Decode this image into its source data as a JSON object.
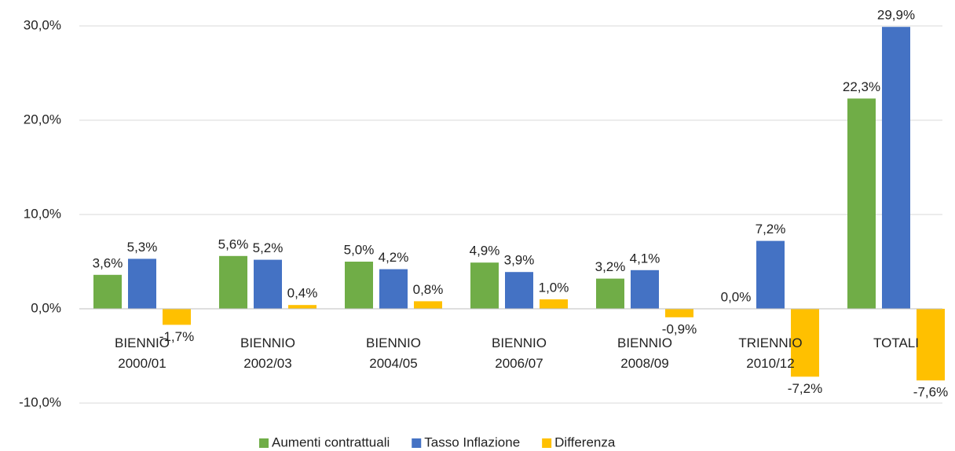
{
  "chart_data": {
    "type": "bar",
    "categories": [
      "BIENNIO 2000/01",
      "BIENNIO 2002/03",
      "BIENNIO 2004/05",
      "BIENNIO 2006/07",
      "BIENNIO 2008/09",
      "TRIENNIO 2010/12",
      "TOTALI"
    ],
    "series": [
      {
        "name": "Aumenti contrattuali",
        "color": "#70ad47",
        "values": [
          3.6,
          5.6,
          5.0,
          4.9,
          3.2,
          0.0,
          22.3
        ],
        "value_labels": [
          "3,6%",
          "5,6%",
          "5,0%",
          "4,9%",
          "3,2%",
          "0,0%",
          "22,3%"
        ]
      },
      {
        "name": "Tasso Inflazione",
        "color": "#4472c4",
        "values": [
          5.3,
          5.2,
          4.2,
          3.9,
          4.1,
          7.2,
          29.9
        ],
        "value_labels": [
          "5,3%",
          "5,2%",
          "4,2%",
          "3,9%",
          "4,1%",
          "7,2%",
          "29,9%"
        ]
      },
      {
        "name": "Differenza",
        "color": "#ffc000",
        "values": [
          -1.7,
          0.4,
          0.8,
          1.0,
          -0.9,
          -7.2,
          -7.6
        ],
        "value_labels": [
          "-1,7%",
          "0,4%",
          "0,8%",
          "1,0%",
          "-0,9%",
          "-7,2%",
          "-7,6%"
        ]
      }
    ],
    "ylim": [
      -10,
      30
    ],
    "yticks": [
      {
        "value": -10,
        "label": "-10,0%"
      },
      {
        "value": 0,
        "label": "0,0%"
      },
      {
        "value": 10,
        "label": "10,0%"
      },
      {
        "value": 20,
        "label": "20,0%"
      },
      {
        "value": 30,
        "label": "30,0%"
      }
    ],
    "grid": true,
    "legend": "bottom"
  }
}
